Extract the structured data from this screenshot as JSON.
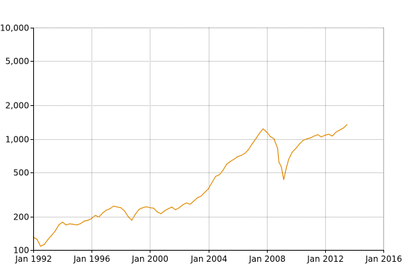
{
  "chart_data": {
    "type": "line",
    "title": "",
    "xlabel": "",
    "ylabel": "",
    "y_scale": "log",
    "grid": true,
    "ylim": [
      100,
      10000
    ],
    "xlim": [
      "1992-01",
      "2016-01"
    ],
    "y_ticks": [
      {
        "value": 100,
        "label": "100"
      },
      {
        "value": 200,
        "label": "200"
      },
      {
        "value": 500,
        "label": "500"
      },
      {
        "value": 1000,
        "label": "1,000"
      },
      {
        "value": 2000,
        "label": "2,000"
      },
      {
        "value": 5000,
        "label": "5,000"
      },
      {
        "value": 10000,
        "label": "10,000"
      }
    ],
    "x_ticks": [
      {
        "value": "1992-01",
        "label": "Jan 1992"
      },
      {
        "value": "1996-01",
        "label": "Jan 1996"
      },
      {
        "value": "2000-01",
        "label": "Jan 2000"
      },
      {
        "value": "2004-01",
        "label": "Jan 2004"
      },
      {
        "value": "2008-01",
        "label": "Jan 2008"
      },
      {
        "value": "2012-01",
        "label": "Jan 2012"
      },
      {
        "value": "2016-01",
        "label": "Jan 2016"
      }
    ],
    "series": [
      {
        "color": "#e08a00",
        "points": [
          [
            "1992-01",
            130
          ],
          [
            "1992-04",
            125
          ],
          [
            "1992-07",
            108
          ],
          [
            "1992-10",
            112
          ],
          [
            "1993-01",
            124
          ],
          [
            "1993-04",
            135
          ],
          [
            "1993-07",
            148
          ],
          [
            "1993-10",
            168
          ],
          [
            "1994-01",
            178
          ],
          [
            "1994-04",
            168
          ],
          [
            "1994-07",
            172
          ],
          [
            "1994-10",
            170
          ],
          [
            "1995-01",
            168
          ],
          [
            "1995-04",
            173
          ],
          [
            "1995-07",
            182
          ],
          [
            "1995-10",
            185
          ],
          [
            "1996-01",
            192
          ],
          [
            "1996-04",
            205
          ],
          [
            "1996-07",
            198
          ],
          [
            "1996-10",
            215
          ],
          [
            "1997-01",
            228
          ],
          [
            "1997-04",
            235
          ],
          [
            "1997-07",
            248
          ],
          [
            "1997-10",
            244
          ],
          [
            "1998-01",
            240
          ],
          [
            "1998-04",
            225
          ],
          [
            "1998-07",
            200
          ],
          [
            "1998-10",
            185
          ],
          [
            "1999-01",
            210
          ],
          [
            "1999-04",
            232
          ],
          [
            "1999-07",
            240
          ],
          [
            "1999-10",
            245
          ],
          [
            "2000-01",
            240
          ],
          [
            "2000-04",
            238
          ],
          [
            "2000-07",
            220
          ],
          [
            "2000-10",
            212
          ],
          [
            "2001-01",
            225
          ],
          [
            "2001-04",
            235
          ],
          [
            "2001-07",
            243
          ],
          [
            "2001-10",
            230
          ],
          [
            "2002-01",
            240
          ],
          [
            "2002-04",
            255
          ],
          [
            "2002-07",
            265
          ],
          [
            "2002-10",
            258
          ],
          [
            "2003-01",
            275
          ],
          [
            "2003-04",
            295
          ],
          [
            "2003-07",
            305
          ],
          [
            "2003-10",
            330
          ],
          [
            "2004-01",
            355
          ],
          [
            "2004-04",
            405
          ],
          [
            "2004-07",
            460
          ],
          [
            "2004-10",
            475
          ],
          [
            "2005-01",
            520
          ],
          [
            "2005-04",
            590
          ],
          [
            "2005-07",
            625
          ],
          [
            "2005-10",
            655
          ],
          [
            "2006-01",
            690
          ],
          [
            "2006-04",
            710
          ],
          [
            "2006-07",
            740
          ],
          [
            "2006-10",
            800
          ],
          [
            "2007-01",
            900
          ],
          [
            "2007-04",
            1000
          ],
          [
            "2007-07",
            1120
          ],
          [
            "2007-10",
            1230
          ],
          [
            "2008-01",
            1150
          ],
          [
            "2008-04",
            1050
          ],
          [
            "2008-07",
            1000
          ],
          [
            "2008-10",
            820
          ],
          [
            "2008-11",
            620
          ],
          [
            "2009-01",
            560
          ],
          [
            "2009-03",
            430
          ],
          [
            "2009-05",
            540
          ],
          [
            "2009-07",
            650
          ],
          [
            "2009-10",
            760
          ],
          [
            "2010-01",
            820
          ],
          [
            "2010-04",
            900
          ],
          [
            "2010-07",
            970
          ],
          [
            "2010-10",
            1000
          ],
          [
            "2011-01",
            1020
          ],
          [
            "2011-04",
            1060
          ],
          [
            "2011-07",
            1090
          ],
          [
            "2011-10",
            1040
          ],
          [
            "2012-01",
            1080
          ],
          [
            "2012-04",
            1100
          ],
          [
            "2012-07",
            1060
          ],
          [
            "2012-10",
            1150
          ],
          [
            "2013-01",
            1200
          ],
          [
            "2013-04",
            1250
          ],
          [
            "2013-07",
            1340
          ]
        ]
      }
    ]
  }
}
